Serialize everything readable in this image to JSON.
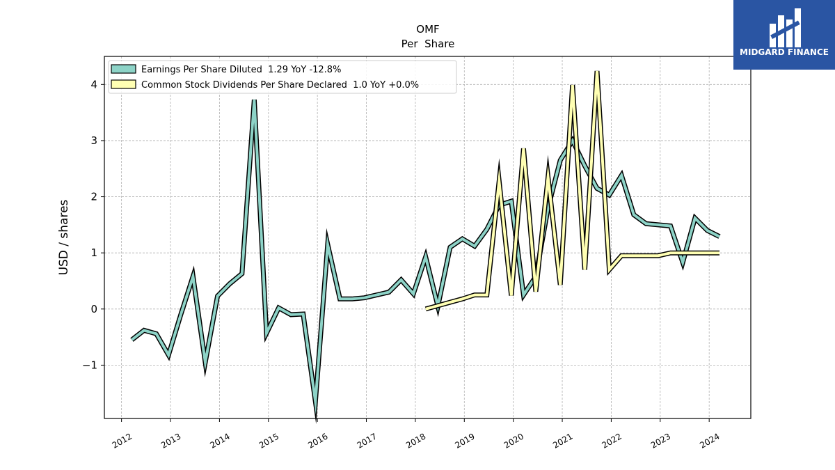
{
  "brand": {
    "name": "MIDGARD FINANCE",
    "color": "#2a55a3"
  },
  "chart_data": {
    "type": "line",
    "title": "OMF",
    "subtitle": "Per  Share",
    "xlabel": "",
    "ylabel": "USD / shares",
    "xlim": [
      2011.65,
      2024.85
    ],
    "ylim": [
      -1.95,
      4.5
    ],
    "xticks": [
      2012,
      2013,
      2014,
      2015,
      2016,
      2017,
      2018,
      2019,
      2020,
      2021,
      2022,
      2023,
      2024
    ],
    "yticks": [
      -1,
      0,
      1,
      2,
      3,
      4
    ],
    "ytick_labels": [
      "−1",
      "0",
      "1",
      "2",
      "3",
      "4"
    ],
    "grid": true,
    "legend_position": "top-left",
    "series": [
      {
        "name": "Earnings Per Share Diluted  1.29 YoY -12.8%",
        "color": "#8dd3c7",
        "points": [
          [
            2012.21,
            -0.55
          ],
          [
            2012.46,
            -0.38
          ],
          [
            2012.71,
            -0.44
          ],
          [
            2012.96,
            -0.82
          ],
          [
            2013.21,
            -0.1
          ],
          [
            2013.46,
            0.58
          ],
          [
            2013.71,
            -0.95
          ],
          [
            2013.96,
            0.23
          ],
          [
            2014.21,
            0.45
          ],
          [
            2014.46,
            0.63
          ],
          [
            2014.71,
            3.73
          ],
          [
            2014.96,
            -0.43
          ],
          [
            2015.21,
            0.02
          ],
          [
            2015.46,
            -0.1
          ],
          [
            2015.71,
            -0.09
          ],
          [
            2015.96,
            -1.65
          ],
          [
            2016.21,
            1.15
          ],
          [
            2016.46,
            0.18
          ],
          [
            2016.71,
            0.18
          ],
          [
            2016.96,
            0.2
          ],
          [
            2017.21,
            0.25
          ],
          [
            2017.46,
            0.3
          ],
          [
            2017.71,
            0.52
          ],
          [
            2017.96,
            0.27
          ],
          [
            2018.21,
            0.93
          ],
          [
            2018.46,
            0.05
          ],
          [
            2018.71,
            1.1
          ],
          [
            2018.96,
            1.25
          ],
          [
            2019.21,
            1.12
          ],
          [
            2019.46,
            1.42
          ],
          [
            2019.71,
            1.85
          ],
          [
            2019.96,
            1.92
          ],
          [
            2020.21,
            0.25
          ],
          [
            2020.46,
            0.58
          ],
          [
            2020.71,
            1.8
          ],
          [
            2020.96,
            2.65
          ],
          [
            2021.21,
            3.0
          ],
          [
            2021.46,
            2.55
          ],
          [
            2021.71,
            2.15
          ],
          [
            2021.96,
            2.03
          ],
          [
            2022.21,
            2.38
          ],
          [
            2022.46,
            1.68
          ],
          [
            2022.71,
            1.52
          ],
          [
            2022.96,
            1.5
          ],
          [
            2023.21,
            1.48
          ],
          [
            2023.46,
            0.83
          ],
          [
            2023.71,
            1.62
          ],
          [
            2023.96,
            1.4
          ],
          [
            2024.21,
            1.29
          ]
        ]
      },
      {
        "name": "Common Stock Dividends Per Share Declared  1.0 YoY +0.0%",
        "color": "#ffffb3",
        "points": [
          [
            2018.21,
            0.0
          ],
          [
            2018.46,
            0.06
          ],
          [
            2018.71,
            0.12
          ],
          [
            2018.96,
            0.18
          ],
          [
            2019.21,
            0.25
          ],
          [
            2019.46,
            0.25
          ],
          [
            2019.71,
            2.28
          ],
          [
            2019.96,
            0.24
          ],
          [
            2020.21,
            2.86
          ],
          [
            2020.46,
            0.31
          ],
          [
            2020.71,
            2.35
          ],
          [
            2020.96,
            0.43
          ],
          [
            2021.21,
            3.99
          ],
          [
            2021.46,
            0.7
          ],
          [
            2021.71,
            4.24
          ],
          [
            2021.96,
            0.7
          ],
          [
            2022.21,
            0.95
          ],
          [
            2022.46,
            0.95
          ],
          [
            2022.71,
            0.95
          ],
          [
            2022.96,
            0.95
          ],
          [
            2023.21,
            1.0
          ],
          [
            2023.46,
            1.0
          ],
          [
            2023.71,
            1.0
          ],
          [
            2023.96,
            1.0
          ],
          [
            2024.21,
            1.0
          ]
        ]
      }
    ]
  }
}
